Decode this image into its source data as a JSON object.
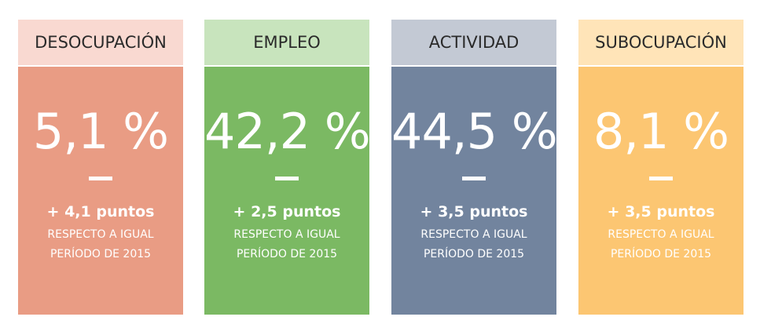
{
  "cards": [
    {
      "header": "DESOCUPACIÓN",
      "value": "5,1 %",
      "delta": "+ 4,1 puntos",
      "ref_line1": "RESPECTO A IGUAL",
      "ref_line2": "PERÍODO DE 2015",
      "header_color": "#f9d9d1",
      "body_color": "#e99c84"
    },
    {
      "header": "EMPLEO",
      "value": "42,2 %",
      "delta": "+ 2,5 puntos",
      "ref_line1": "RESPECTO A IGUAL",
      "ref_line2": "PERÍODO DE 2015",
      "header_color": "#c8e4bd",
      "body_color": "#7bb963"
    },
    {
      "header": "ACTIVIDAD",
      "value": "44,5 %",
      "delta": "+ 3,5 puntos",
      "ref_line1": "RESPECTO A IGUAL",
      "ref_line2": "PERÍODO DE 2015",
      "header_color": "#c3c9d4",
      "body_color": "#72849e"
    },
    {
      "header": "SUBOCUPACIÓN",
      "value": "8,1 %",
      "delta": "+ 3,5 puntos",
      "ref_line1": "RESPECTO A IGUAL",
      "ref_line2": "PERÍODO DE 2015",
      "header_color": "#ffe4b8",
      "body_color": "#fcc672"
    }
  ]
}
